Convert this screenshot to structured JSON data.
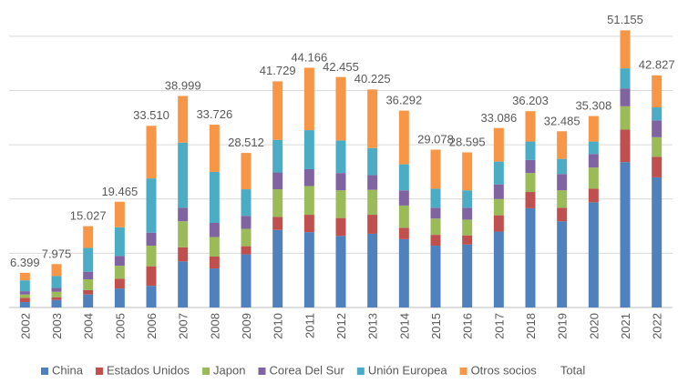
{
  "chart_data": {
    "type": "stacked_bar",
    "categories": [
      "2002",
      "2003",
      "2004",
      "2005",
      "2006",
      "2007",
      "2008",
      "2009",
      "2010",
      "2011",
      "2012",
      "2013",
      "2014",
      "2015",
      "2016",
      "2017",
      "2018",
      "2019",
      "2020",
      "2021",
      "2022"
    ],
    "series": [
      {
        "name": "China",
        "color": "#4f81bd",
        "values": [
          1.0,
          1.4,
          2.4,
          3.5,
          4.0,
          8.5,
          7.2,
          9.8,
          14.3,
          13.9,
          13.2,
          13.6,
          12.6,
          11.4,
          11.6,
          14.0,
          18.3,
          15.9,
          19.4,
          26.8,
          24.0
        ]
      },
      {
        "name": "Estados Unidos",
        "color": "#c0504d",
        "values": [
          0.8,
          0.5,
          0.8,
          1.8,
          3.6,
          2.6,
          2.2,
          1.5,
          2.4,
          3.2,
          3.3,
          3.5,
          2.1,
          2.0,
          1.7,
          3.0,
          3.0,
          2.5,
          2.5,
          6.0,
          3.8
        ]
      },
      {
        "name": "Japon",
        "color": "#9bbb59",
        "values": [
          0.6,
          1.0,
          2.0,
          2.4,
          3.8,
          4.8,
          3.6,
          3.2,
          5.1,
          5.3,
          5.1,
          4.6,
          4.1,
          3.0,
          2.9,
          3.0,
          3.5,
          3.2,
          3.9,
          4.3,
          3.6
        ]
      },
      {
        "name": "Corea Del Sur",
        "color": "#8064a2",
        "values": [
          0.6,
          0.7,
          1.4,
          1.8,
          2.4,
          2.5,
          2.6,
          2.4,
          3.1,
          3.1,
          3.2,
          2.7,
          2.8,
          2.0,
          2.2,
          2.7,
          2.4,
          3.0,
          2.5,
          3.3,
          3.1
        ]
      },
      {
        "name": "Unión Europea",
        "color": "#4bacc6",
        "values": [
          2.0,
          2.2,
          4.4,
          5.3,
          10.0,
          12.0,
          9.4,
          4.9,
          6.0,
          7.2,
          6.0,
          5.0,
          4.8,
          3.5,
          3.2,
          4.2,
          3.4,
          2.8,
          2.3,
          3.7,
          2.4
        ]
      },
      {
        "name": "Otros socios",
        "color": "#f79646",
        "values": [
          1.4,
          2.2,
          4.0,
          4.7,
          9.7,
          8.6,
          8.7,
          6.7,
          10.8,
          11.5,
          11.7,
          10.8,
          9.9,
          7.2,
          7.0,
          6.2,
          5.6,
          5.1,
          4.7,
          7.0,
          5.9
        ]
      },
      {
        "name": "Total",
        "color": "none",
        "values": [
          6.399,
          7.975,
          15.027,
          19.465,
          33.51,
          38.999,
          33.726,
          28.512,
          41.729,
          44.166,
          42.455,
          40.225,
          36.292,
          29.078,
          28.595,
          33.086,
          36.203,
          32.485,
          35.308,
          51.155,
          42.827
        ],
        "value_labels": [
          "6.399",
          "7.975",
          "15.027",
          "19.465",
          "33.510",
          "38.999",
          "33.726",
          "28.512",
          "41.729",
          "44.166",
          "42.455",
          "40.225",
          "36.292",
          "29.078",
          "28.595",
          "33.086",
          "36.203",
          "32.485",
          "35.308",
          "51.155",
          "42.827"
        ]
      }
    ],
    "ylim": [
      0,
      52
    ],
    "yticks": [
      0,
      10,
      20,
      30,
      40,
      50
    ],
    "grid": true,
    "legend": "bottom"
  }
}
